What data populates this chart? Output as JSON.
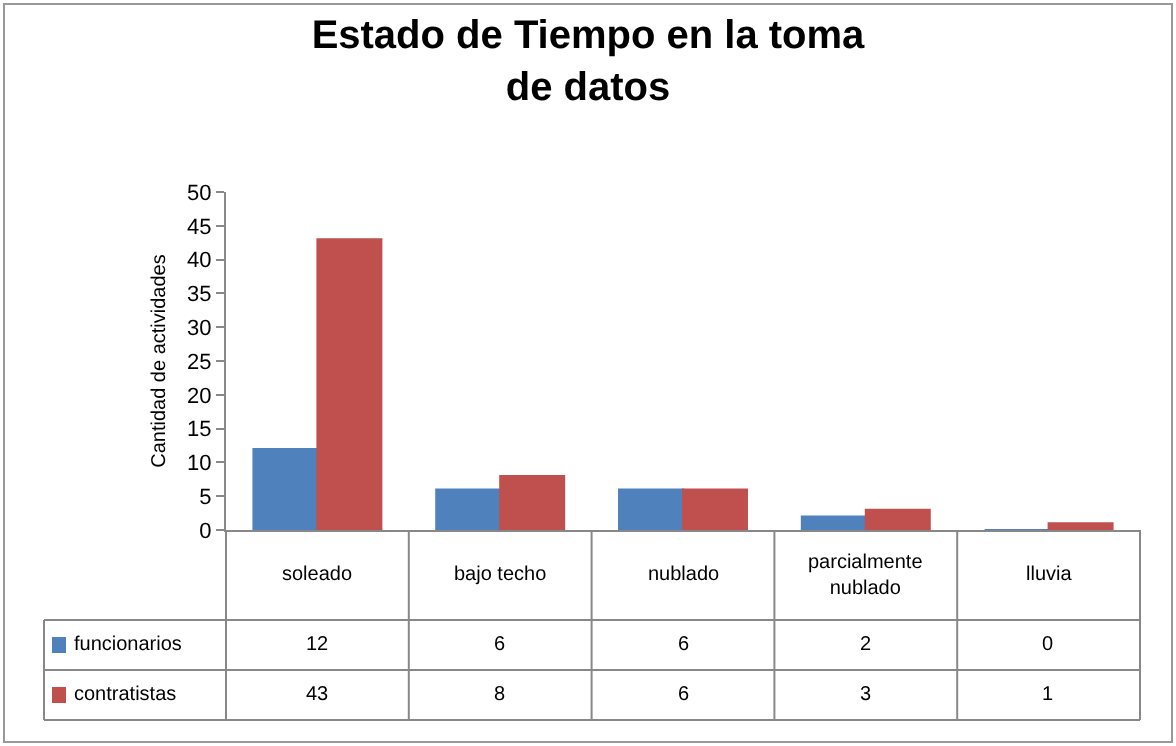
{
  "chart_data": {
    "type": "bar",
    "title": "Estado de Tiempo en la toma\nde datos",
    "ylabel": "Cantidad de actividades",
    "categories": [
      "soleado",
      "bajo techo",
      "nublado",
      "parcialmente nublado",
      "lluvia"
    ],
    "series": [
      {
        "name": "funcionarios",
        "color": "#4f81bd",
        "values": [
          12,
          6,
          6,
          2,
          0
        ]
      },
      {
        "name": "contratistas",
        "color": "#c0504d",
        "values": [
          43,
          8,
          6,
          3,
          1
        ]
      }
    ],
    "ylim": [
      0,
      50
    ],
    "yticks": [
      0,
      5,
      10,
      15,
      20,
      25,
      30,
      35,
      40,
      45,
      50
    ],
    "data_labels": true,
    "legend": "bottom"
  }
}
